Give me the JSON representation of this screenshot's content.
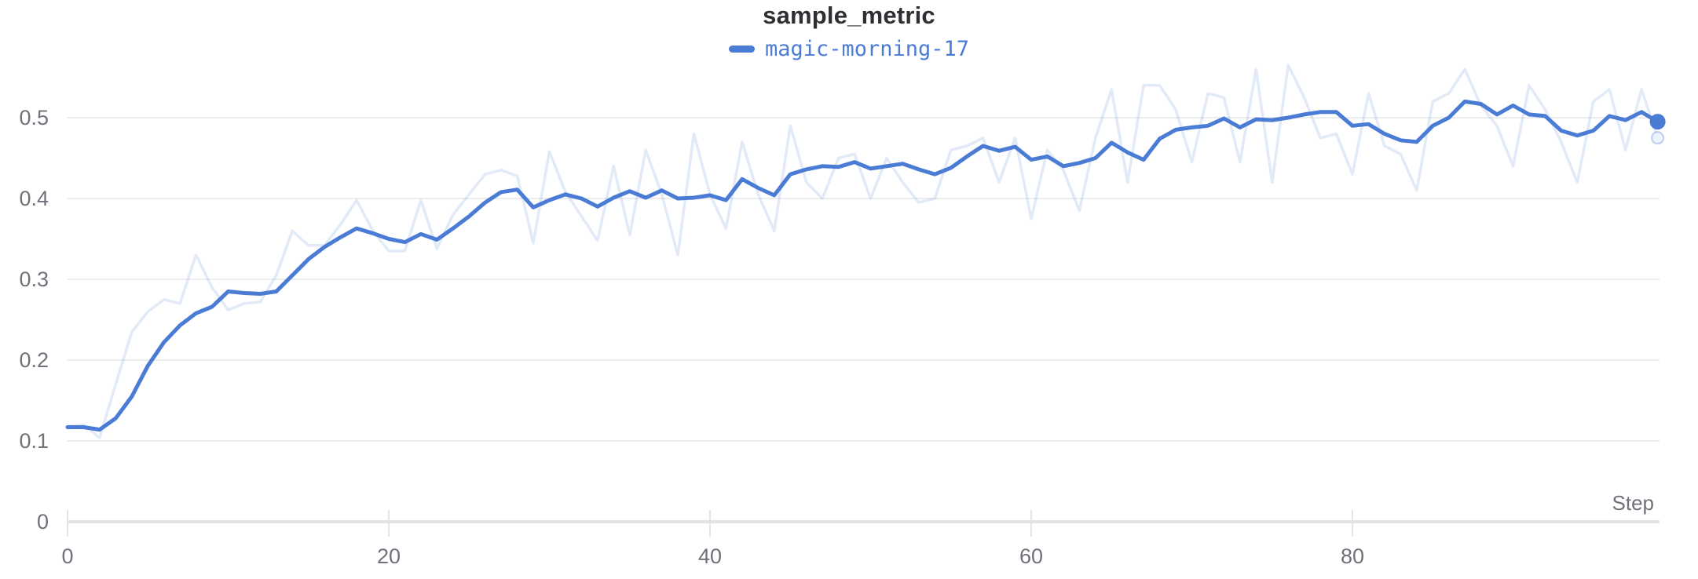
{
  "page": {
    "background": "#ffffff"
  },
  "chart_data": {
    "type": "line",
    "title": "sample_metric",
    "xlabel": "Step",
    "ylabel": "",
    "legend": [
      "magic-morning-17"
    ],
    "legend_position": "top-center",
    "grid": true,
    "x_ticks": [
      0,
      20,
      40,
      60,
      80
    ],
    "y_ticks": [
      0,
      0.1,
      0.2,
      0.3,
      0.4,
      0.5
    ],
    "xlim": [
      0,
      99
    ],
    "ylim": [
      0,
      0.56
    ],
    "end_markers": true,
    "colors": {
      "run": "#4a7bd5",
      "raw_line": "rgba(74,123,213,0.16)",
      "grid": "#ededf0",
      "axis": "#e4e4e7",
      "tick_label": "#71717c",
      "title": "#2e2e33",
      "raw_marker_fill": "#eef3fc",
      "raw_marker_stroke": "rgba(74,123,213,0.35)"
    },
    "x": [
      0,
      1,
      2,
      3,
      4,
      5,
      6,
      7,
      8,
      9,
      10,
      11,
      12,
      13,
      14,
      15,
      16,
      17,
      18,
      19,
      20,
      21,
      22,
      23,
      24,
      25,
      26,
      27,
      28,
      29,
      30,
      31,
      32,
      33,
      34,
      35,
      36,
      37,
      38,
      39,
      40,
      41,
      42,
      43,
      44,
      45,
      46,
      47,
      48,
      49,
      50,
      51,
      52,
      53,
      54,
      55,
      56,
      57,
      58,
      59,
      60,
      61,
      62,
      63,
      64,
      65,
      66,
      67,
      68,
      69,
      70,
      71,
      72,
      73,
      74,
      75,
      76,
      77,
      78,
      79,
      80,
      81,
      82,
      83,
      84,
      85,
      86,
      87,
      88,
      89,
      90,
      91,
      92,
      93,
      94,
      95,
      96,
      97,
      98,
      99
    ],
    "series": [
      {
        "name": "magic-morning-17",
        "variant": "smoothed",
        "color": "#4a7bd5",
        "stroke_width": 5,
        "values": [
          0.117,
          0.117,
          0.114,
          0.128,
          0.155,
          0.193,
          0.222,
          0.243,
          0.258,
          0.266,
          0.285,
          0.283,
          0.282,
          0.285,
          0.305,
          0.325,
          0.34,
          0.352,
          0.363,
          0.357,
          0.35,
          0.346,
          0.356,
          0.349,
          0.363,
          0.378,
          0.395,
          0.408,
          0.411,
          0.389,
          0.398,
          0.405,
          0.4,
          0.39,
          0.401,
          0.409,
          0.401,
          0.41,
          0.4,
          0.401,
          0.404,
          0.398,
          0.424,
          0.413,
          0.404,
          0.43,
          0.436,
          0.44,
          0.439,
          0.445,
          0.437,
          0.44,
          0.443,
          0.436,
          0.43,
          0.438,
          0.452,
          0.465,
          0.459,
          0.464,
          0.448,
          0.452,
          0.44,
          0.444,
          0.45,
          0.469,
          0.457,
          0.448,
          0.474,
          0.485,
          0.488,
          0.49,
          0.499,
          0.488,
          0.498,
          0.497,
          0.5,
          0.504,
          0.507,
          0.507,
          0.49,
          0.492,
          0.48,
          0.472,
          0.47,
          0.49,
          0.5,
          0.52,
          0.517,
          0.504,
          0.515,
          0.504,
          0.502,
          0.484,
          0.478,
          0.484,
          0.502,
          0.497,
          0.507,
          0.495
        ]
      },
      {
        "name": "magic-morning-17",
        "variant": "raw",
        "color": "rgba(74,123,213,0.16)",
        "stroke_width": 3.5,
        "values": [
          0.118,
          0.12,
          0.104,
          0.17,
          0.235,
          0.26,
          0.275,
          0.27,
          0.33,
          0.29,
          0.262,
          0.27,
          0.272,
          0.305,
          0.36,
          0.342,
          0.342,
          0.368,
          0.398,
          0.36,
          0.335,
          0.335,
          0.398,
          0.338,
          0.38,
          0.405,
          0.43,
          0.435,
          0.428,
          0.345,
          0.458,
          0.408,
          0.378,
          0.348,
          0.44,
          0.355,
          0.46,
          0.405,
          0.33,
          0.48,
          0.405,
          0.363,
          0.47,
          0.405,
          0.36,
          0.49,
          0.42,
          0.4,
          0.45,
          0.455,
          0.4,
          0.45,
          0.42,
          0.395,
          0.4,
          0.46,
          0.465,
          0.475,
          0.42,
          0.475,
          0.375,
          0.46,
          0.435,
          0.385,
          0.475,
          0.535,
          0.42,
          0.54,
          0.54,
          0.51,
          0.445,
          0.53,
          0.525,
          0.445,
          0.56,
          0.42,
          0.565,
          0.525,
          0.475,
          0.48,
          0.43,
          0.53,
          0.465,
          0.455,
          0.41,
          0.52,
          0.53,
          0.56,
          0.515,
          0.49,
          0.44,
          0.54,
          0.51,
          0.47,
          0.42,
          0.52,
          0.535,
          0.46,
          0.535,
          0.475
        ]
      }
    ]
  }
}
